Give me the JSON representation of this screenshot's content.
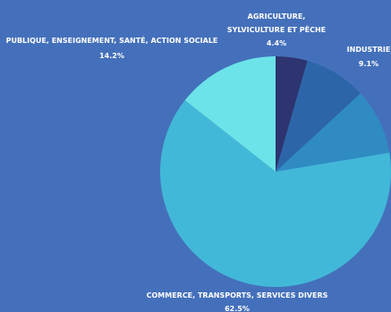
{
  "chart_data": {
    "type": "pie",
    "slices": [
      {
        "label": "AGRICULTURE,",
        "label_line2": "SYLVICULTURE ET PÊCHE",
        "value_label": "4.4%",
        "value": 4.4,
        "color": "#2d3470"
      },
      {
        "label": "",
        "label_line2": "",
        "value_label": "",
        "value": 8.6,
        "color": "#2d66a8"
      },
      {
        "label": "INDUSTRIE",
        "label_line2": "",
        "value_label": "9.1%",
        "value": 9.1,
        "color": "#2f8bc2"
      },
      {
        "label": "COMMERCE, TRANSPORTS, SERVICES DIVERS",
        "label_line2": "",
        "value_label": "62.5%",
        "value": 62.5,
        "color": "#42b8d8"
      },
      {
        "label": "PUBLIQUE, ENSEIGNEMENT, SANTÉ, ACTION SOCIALE",
        "label_line2": "",
        "value_label": "14.2%",
        "value": 14.2,
        "color": "#6ce3e8"
      }
    ]
  }
}
